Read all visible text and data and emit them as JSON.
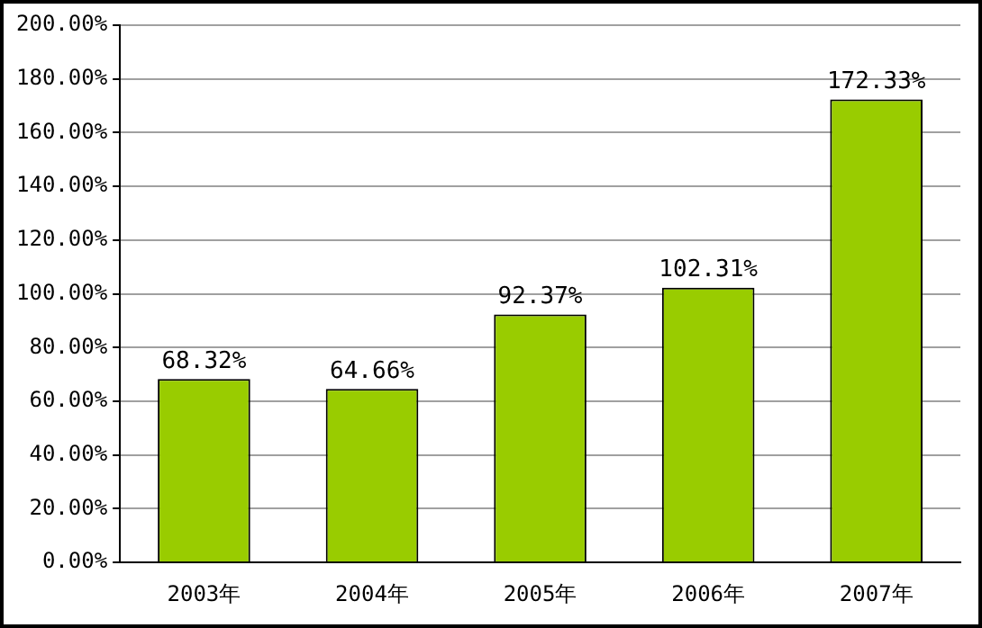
{
  "chart_data": {
    "type": "bar",
    "categories": [
      "2003年",
      "2004年",
      "2005年",
      "2006年",
      "2007年"
    ],
    "values": [
      68.32,
      64.66,
      92.37,
      102.31,
      172.33
    ],
    "value_labels": [
      "68.32%",
      "64.66%",
      "92.37%",
      "102.31%",
      "172.33%"
    ],
    "color": "#99cc00",
    "ylim": [
      0,
      200
    ],
    "yticks": [
      {
        "value": 0,
        "label": "0.00%"
      },
      {
        "value": 20,
        "label": "20.00%"
      },
      {
        "value": 40,
        "label": "40.00%"
      },
      {
        "value": 60,
        "label": "60.00%"
      },
      {
        "value": 80,
        "label": "80.00%"
      },
      {
        "value": 100,
        "label": "100.00%"
      },
      {
        "value": 120,
        "label": "120.00%"
      },
      {
        "value": 140,
        "label": "140.00%"
      },
      {
        "value": 160,
        "label": "160.00%"
      },
      {
        "value": 180,
        "label": "180.00%"
      },
      {
        "value": 200,
        "label": "200.00%"
      }
    ],
    "grid": "y",
    "legend": false
  }
}
